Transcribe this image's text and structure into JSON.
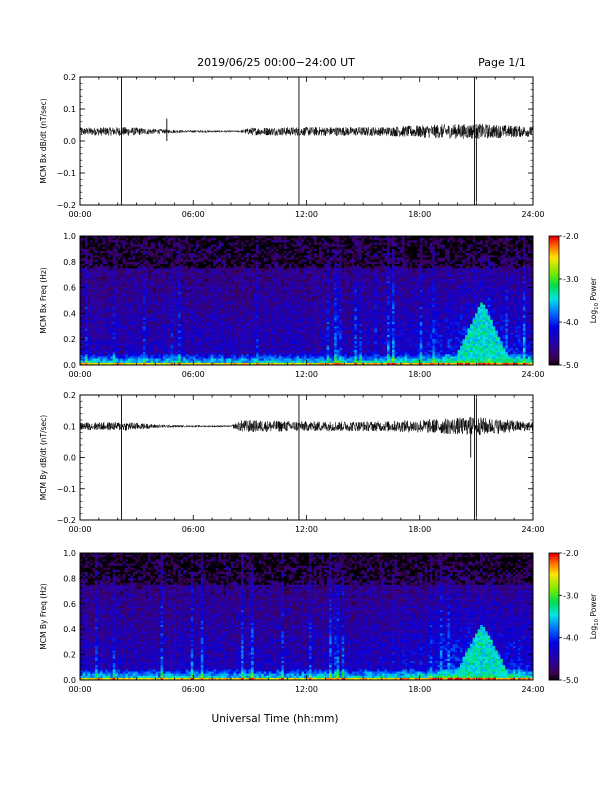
{
  "header": {
    "title": "2019/06/25  00:00−24:00 UT",
    "page": "Page 1/1"
  },
  "xaxis_label": "Universal Time (hh:mm)",
  "colorbar": {
    "label_prefix": "Log",
    "label_sub": "10",
    "label_suffix": " Power",
    "ticks": [
      "-2.0",
      "-3.0",
      "-4.0",
      "-5.0"
    ]
  },
  "chart_data": [
    {
      "type": "line",
      "ylabel": "MCM Bx dB/dt (nT/sec)",
      "x_ticks": [
        "00:00",
        "06:00",
        "12:00",
        "18:00",
        "24:00"
      ],
      "xlim_hours": [
        0,
        24
      ],
      "ylim": [
        -0.2,
        0.2
      ],
      "y_ticks": [
        "0.2",
        "0.1",
        "0.0",
        "−0.1",
        "−0.2"
      ],
      "baseline": 0.03,
      "noise_profile": [
        {
          "hour": 0,
          "amp": 0.012
        },
        {
          "hour": 2.5,
          "amp": 0.014
        },
        {
          "hour": 4,
          "amp": 0.008
        },
        {
          "hour": 5.5,
          "amp": 0.004
        },
        {
          "hour": 8.5,
          "amp": 0.003
        },
        {
          "hour": 9,
          "amp": 0.012
        },
        {
          "hour": 12,
          "amp": 0.014
        },
        {
          "hour": 16,
          "amp": 0.014
        },
        {
          "hour": 19,
          "amp": 0.022
        },
        {
          "hour": 21,
          "amp": 0.024
        },
        {
          "hour": 24,
          "amp": 0.016
        }
      ],
      "spikes": [
        {
          "hour": 2.2,
          "ymax": 0.2,
          "ymin": -0.2
        },
        {
          "hour": 4.6,
          "ymax": 0.07,
          "ymin": 0.0
        },
        {
          "hour": 11.6,
          "ymax": 0.2,
          "ymin": -0.2
        },
        {
          "hour": 20.9,
          "ymax": 0.2,
          "ymin": -0.2
        },
        {
          "hour": 21.0,
          "ymax": 0.04,
          "ymin": -0.19
        }
      ]
    },
    {
      "type": "heatmap",
      "ylabel": "MCM Bx Freq (Hz)",
      "x_ticks": [
        "00:00",
        "06:00",
        "12:00",
        "18:00",
        "24:00"
      ],
      "xlim_hours": [
        0,
        24
      ],
      "ylim": [
        0,
        1.0
      ],
      "y_ticks": [
        "1.0",
        "0.8",
        "0.6",
        "0.4",
        "0.2",
        "0.0"
      ],
      "zlim": [
        -5.0,
        -2.0
      ],
      "feature": {
        "hour_center": 21.3,
        "freq_top": 0.5,
        "level": -3.0
      }
    },
    {
      "type": "line",
      "ylabel": "MCM By dB/dt (nT/sec)",
      "x_ticks": [
        "00:00",
        "06:00",
        "12:00",
        "18:00",
        "24:00"
      ],
      "xlim_hours": [
        0,
        24
      ],
      "ylim": [
        -0.2,
        0.2
      ],
      "y_ticks": [
        "0.2",
        "0.1",
        "0.0",
        "−0.1",
        "−0.2"
      ],
      "baseline": 0.1,
      "noise_profile": [
        {
          "hour": 0,
          "amp": 0.012
        },
        {
          "hour": 2.5,
          "amp": 0.014
        },
        {
          "hour": 4,
          "amp": 0.006
        },
        {
          "hour": 5.5,
          "amp": 0.003
        },
        {
          "hour": 8,
          "amp": 0.003
        },
        {
          "hour": 8.6,
          "amp": 0.02
        },
        {
          "hour": 12,
          "amp": 0.016
        },
        {
          "hour": 16,
          "amp": 0.016
        },
        {
          "hour": 19,
          "amp": 0.024
        },
        {
          "hour": 21,
          "amp": 0.03
        },
        {
          "hour": 24,
          "amp": 0.014
        }
      ],
      "spikes": [
        {
          "hour": 2.2,
          "ymax": 0.2,
          "ymin": -0.2
        },
        {
          "hour": 11.6,
          "ymax": 0.2,
          "ymin": -0.2
        },
        {
          "hour": 20.9,
          "ymax": 0.2,
          "ymin": -0.2
        },
        {
          "hour": 21.0,
          "ymax": 0.19,
          "ymin": -0.19
        },
        {
          "hour": 20.7,
          "ymax": 0.13,
          "ymin": 0.0
        }
      ]
    },
    {
      "type": "heatmap",
      "ylabel": "MCM By Freq (Hz)",
      "x_ticks": [
        "00:00",
        "06:00",
        "12:00",
        "18:00",
        "24:00"
      ],
      "xlim_hours": [
        0,
        24
      ],
      "ylim": [
        0,
        1.0
      ],
      "y_ticks": [
        "1.0",
        "0.8",
        "0.6",
        "0.4",
        "0.2",
        "0.0"
      ],
      "zlim": [
        -5.0,
        -2.0
      ],
      "feature": {
        "hour_center": 21.3,
        "freq_top": 0.45,
        "level": -3.0
      }
    }
  ]
}
